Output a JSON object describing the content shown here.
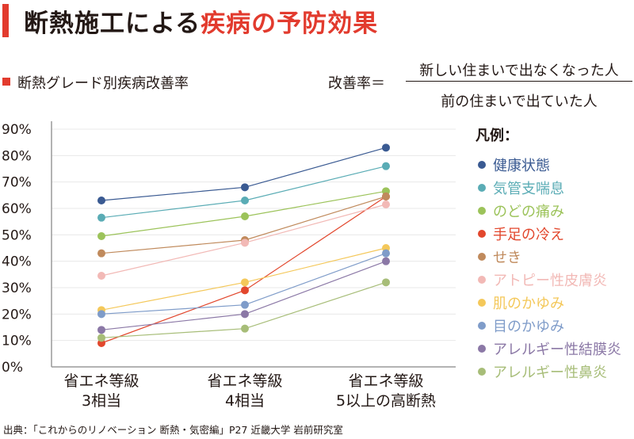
{
  "header": {
    "title_main": "断熱施工による",
    "title_accent": "疾病の予防効果"
  },
  "subtitle": "断熱グレード別疾病改善率",
  "formula": {
    "lhs": "改善率＝",
    "numerator": "新しい住まいで出なくなった人",
    "denominator": "前の住まいで出ていた人"
  },
  "legend_title": "凡例：",
  "source": "出典：「これからのリノベーション 断熱・気密編」P27 近畿大学 岩前研究室",
  "colors": {
    "accent": "#e23b2e",
    "text": "#231815",
    "axis": "#9a9a9a",
    "grid": "#e8e8e8"
  },
  "chart_data": {
    "type": "line",
    "title": "断熱グレード別疾病改善率",
    "xlabel": "",
    "ylabel": "",
    "ylim": [
      0,
      90
    ],
    "yticks": [
      0,
      10,
      20,
      30,
      40,
      50,
      60,
      70,
      80,
      90
    ],
    "ytick_labels": [
      "0%",
      "10%",
      "20%",
      "30%",
      "40%",
      "50%",
      "60%",
      "70%",
      "80%",
      "90%"
    ],
    "categories": [
      [
        "省エネ等級",
        "3相当"
      ],
      [
        "省エネ等級",
        "4相当"
      ],
      [
        "省エネ等級",
        "5以上の高断熱"
      ]
    ],
    "legend_position": "right",
    "series": [
      {
        "name": "健康状態",
        "color": "#3a5a92",
        "values": [
          63,
          68,
          83
        ]
      },
      {
        "name": "気管支喘息",
        "color": "#5aacb5",
        "values": [
          56.5,
          63,
          76
        ]
      },
      {
        "name": "のどの痛み",
        "color": "#9cc35a",
        "values": [
          49.5,
          57,
          66.5
        ]
      },
      {
        "name": "手足の冷え",
        "color": "#e2472d",
        "values": [
          9,
          29,
          64.5
        ]
      },
      {
        "name": "せき",
        "color": "#c08a5c",
        "values": [
          43,
          48,
          64.5
        ]
      },
      {
        "name": "アトピー性皮膚炎",
        "color": "#f2b9b6",
        "values": [
          34.5,
          47,
          61.5
        ]
      },
      {
        "name": "肌のかゆみ",
        "color": "#f4c85a",
        "values": [
          21.5,
          32,
          45
        ]
      },
      {
        "name": "目のかゆみ",
        "color": "#7f9cc9",
        "values": [
          20,
          23.5,
          43
        ]
      },
      {
        "name": "アレルギー性結膜炎",
        "color": "#8b78a6",
        "values": [
          14,
          20,
          40
        ]
      },
      {
        "name": "アレルギー性鼻炎",
        "color": "#a7bd78",
        "values": [
          11,
          14.5,
          32
        ]
      }
    ]
  }
}
